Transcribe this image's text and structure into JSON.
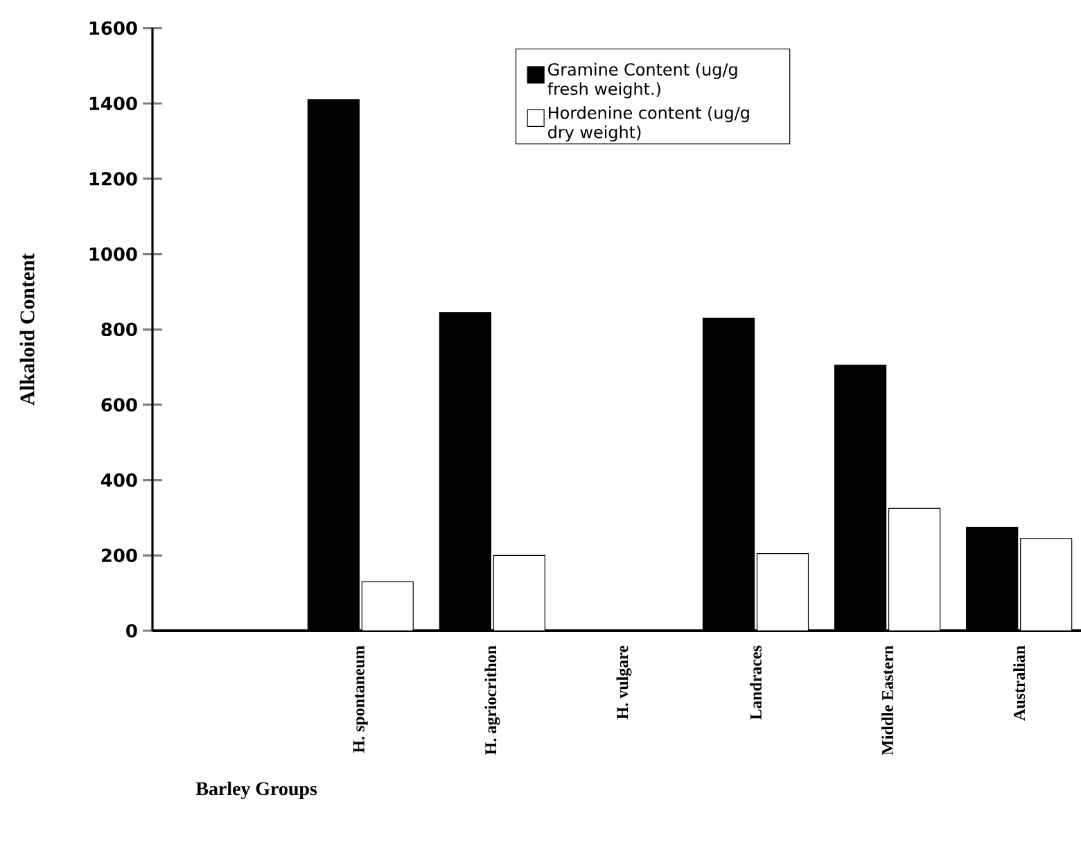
{
  "chart_data": {
    "type": "bar",
    "xlabel": "Barley Groups",
    "ylabel": "Alkaloid Content",
    "categories": [
      null,
      "H. spontaneum",
      "H. agriocrithon",
      "H. vulgare",
      "Landraces",
      "Middle Eastern",
      "Australian"
    ],
    "series": [
      {
        "name": "Gramine Content (ug/g fresh weight.)",
        "color": "#000000",
        "values": [
          null,
          1410,
          845,
          null,
          830,
          705,
          275
        ]
      },
      {
        "name": "Hordenine content (ug/g dry weight)",
        "color": "#ffffff",
        "values": [
          null,
          130,
          200,
          null,
          205,
          325,
          245
        ]
      }
    ],
    "ylim": [
      0,
      1600
    ],
    "yticks": [
      0,
      200,
      400,
      600,
      800,
      1000,
      1200,
      1400,
      1600
    ],
    "legend": "top right",
    "grid": false
  }
}
